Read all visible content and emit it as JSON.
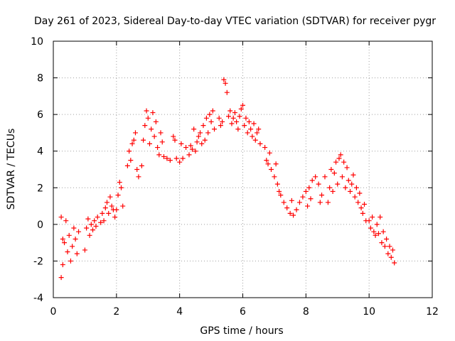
{
  "chart_data": {
    "type": "scatter",
    "title": "Day 261 of 2023, Sidereal Day-to-day VTEC variation (SDTVAR) for receiver pygr",
    "xlabel": "GPS time / hours",
    "ylabel": "SDTVAR / TECUs",
    "xlim": [
      0,
      12
    ],
    "ylim": [
      -4,
      10
    ],
    "xticks": [
      "0",
      "2",
      "4",
      "6",
      "8",
      "10",
      "12"
    ],
    "yticks": [
      "-4",
      "-2",
      "0",
      "2",
      "4",
      "6",
      "8",
      "10"
    ],
    "grid": true,
    "marker": "plus",
    "marker_color": "#ff0000",
    "series": [
      {
        "name": "SDTVAR",
        "points": [
          [
            0.25,
            0.4
          ],
          [
            0.3,
            -0.8
          ],
          [
            0.3,
            -2.2
          ],
          [
            0.35,
            -1.0
          ],
          [
            0.4,
            0.2
          ],
          [
            0.45,
            -1.5
          ],
          [
            0.5,
            -0.6
          ],
          [
            0.55,
            -2.0
          ],
          [
            0.6,
            -1.2
          ],
          [
            0.65,
            -0.2
          ],
          [
            0.7,
            -0.8
          ],
          [
            0.75,
            -1.6
          ],
          [
            0.8,
            -0.4
          ],
          [
            0.25,
            -2.9
          ],
          [
            1.0,
            -1.4
          ],
          [
            1.05,
            -0.2
          ],
          [
            1.1,
            0.3
          ],
          [
            1.15,
            -0.6
          ],
          [
            1.2,
            0.0
          ],
          [
            1.25,
            -0.3
          ],
          [
            1.3,
            0.2
          ],
          [
            1.35,
            -0.1
          ],
          [
            1.4,
            0.4
          ],
          [
            1.5,
            0.1
          ],
          [
            1.55,
            0.6
          ],
          [
            1.6,
            0.2
          ],
          [
            1.65,
            0.9
          ],
          [
            1.7,
            1.2
          ],
          [
            1.75,
            0.6
          ],
          [
            1.8,
            1.5
          ],
          [
            1.85,
            1.0
          ],
          [
            1.9,
            0.8
          ],
          [
            1.95,
            0.4
          ],
          [
            2.0,
            0.8
          ],
          [
            2.05,
            1.6
          ],
          [
            2.1,
            2.3
          ],
          [
            2.15,
            2.0
          ],
          [
            2.2,
            1.0
          ],
          [
            2.35,
            3.2
          ],
          [
            2.4,
            4.0
          ],
          [
            2.45,
            3.5
          ],
          [
            2.5,
            4.4
          ],
          [
            2.55,
            4.6
          ],
          [
            2.6,
            5.0
          ],
          [
            2.65,
            3.0
          ],
          [
            2.7,
            2.6
          ],
          [
            2.8,
            3.2
          ],
          [
            2.85,
            4.6
          ],
          [
            2.9,
            5.4
          ],
          [
            2.95,
            6.2
          ],
          [
            3.0,
            5.8
          ],
          [
            3.05,
            4.4
          ],
          [
            3.1,
            5.2
          ],
          [
            3.15,
            6.1
          ],
          [
            3.2,
            4.8
          ],
          [
            3.25,
            5.6
          ],
          [
            3.3,
            4.2
          ],
          [
            3.35,
            3.8
          ],
          [
            3.4,
            5.0
          ],
          [
            3.45,
            4.5
          ],
          [
            3.5,
            3.7
          ],
          [
            3.6,
            3.6
          ],
          [
            3.7,
            3.5
          ],
          [
            3.8,
            4.8
          ],
          [
            3.85,
            4.6
          ],
          [
            3.9,
            3.6
          ],
          [
            4.0,
            3.4
          ],
          [
            4.05,
            4.4
          ],
          [
            4.1,
            3.6
          ],
          [
            4.2,
            4.2
          ],
          [
            4.3,
            3.8
          ],
          [
            4.35,
            4.3
          ],
          [
            4.4,
            4.1
          ],
          [
            4.45,
            5.2
          ],
          [
            4.5,
            4.0
          ],
          [
            4.55,
            4.5
          ],
          [
            4.6,
            4.8
          ],
          [
            4.65,
            5.0
          ],
          [
            4.7,
            4.4
          ],
          [
            4.75,
            5.4
          ],
          [
            4.8,
            4.6
          ],
          [
            4.85,
            5.8
          ],
          [
            4.9,
            5.0
          ],
          [
            4.95,
            6.0
          ],
          [
            5.0,
            5.6
          ],
          [
            5.05,
            6.2
          ],
          [
            5.1,
            5.2
          ],
          [
            5.25,
            5.8
          ],
          [
            5.3,
            5.4
          ],
          [
            5.35,
            5.6
          ],
          [
            5.4,
            7.9
          ],
          [
            5.45,
            7.7
          ],
          [
            5.5,
            7.2
          ],
          [
            5.55,
            5.9
          ],
          [
            5.6,
            6.2
          ],
          [
            5.65,
            5.5
          ],
          [
            5.7,
            5.8
          ],
          [
            5.75,
            6.1
          ],
          [
            5.8,
            5.6
          ],
          [
            5.85,
            5.2
          ],
          [
            5.9,
            5.9
          ],
          [
            5.95,
            6.3
          ],
          [
            6.0,
            6.5
          ],
          [
            6.05,
            5.4
          ],
          [
            6.1,
            5.8
          ],
          [
            6.15,
            5.0
          ],
          [
            6.2,
            5.6
          ],
          [
            6.25,
            5.2
          ],
          [
            6.3,
            4.8
          ],
          [
            6.35,
            5.5
          ],
          [
            6.4,
            4.6
          ],
          [
            6.45,
            5.0
          ],
          [
            6.5,
            5.2
          ],
          [
            6.55,
            4.4
          ],
          [
            6.7,
            4.2
          ],
          [
            6.75,
            3.5
          ],
          [
            6.8,
            3.3
          ],
          [
            6.85,
            3.9
          ],
          [
            6.9,
            3.0
          ],
          [
            7.0,
            2.6
          ],
          [
            7.05,
            3.3
          ],
          [
            7.1,
            2.2
          ],
          [
            7.15,
            1.8
          ],
          [
            7.2,
            1.6
          ],
          [
            7.3,
            1.2
          ],
          [
            7.4,
            0.9
          ],
          [
            7.5,
            0.6
          ],
          [
            7.55,
            1.3
          ],
          [
            7.6,
            0.5
          ],
          [
            7.7,
            0.8
          ],
          [
            7.8,
            1.2
          ],
          [
            7.9,
            1.5
          ],
          [
            8.0,
            1.8
          ],
          [
            8.05,
            1.0
          ],
          [
            8.1,
            2.0
          ],
          [
            8.15,
            1.4
          ],
          [
            8.2,
            2.4
          ],
          [
            8.3,
            2.6
          ],
          [
            8.4,
            2.2
          ],
          [
            8.45,
            1.2
          ],
          [
            8.5,
            1.6
          ],
          [
            8.6,
            2.6
          ],
          [
            8.7,
            1.2
          ],
          [
            8.75,
            2.0
          ],
          [
            8.8,
            3.0
          ],
          [
            8.85,
            1.8
          ],
          [
            8.9,
            2.8
          ],
          [
            8.95,
            3.4
          ],
          [
            9.0,
            2.2
          ],
          [
            9.05,
            3.6
          ],
          [
            9.1,
            3.8
          ],
          [
            9.15,
            2.6
          ],
          [
            9.2,
            3.4
          ],
          [
            9.25,
            2.0
          ],
          [
            9.3,
            3.1
          ],
          [
            9.35,
            2.4
          ],
          [
            9.4,
            1.8
          ],
          [
            9.45,
            2.2
          ],
          [
            9.5,
            2.7
          ],
          [
            9.55,
            1.5
          ],
          [
            9.6,
            2.0
          ],
          [
            9.65,
            1.2
          ],
          [
            9.7,
            1.7
          ],
          [
            9.75,
            0.9
          ],
          [
            9.8,
            0.6
          ],
          [
            9.85,
            1.1
          ],
          [
            9.9,
            0.2
          ],
          [
            10.0,
            0.2
          ],
          [
            10.05,
            -0.2
          ],
          [
            10.1,
            0.4
          ],
          [
            10.15,
            -0.4
          ],
          [
            10.2,
            -0.6
          ],
          [
            10.25,
            0.0
          ],
          [
            10.3,
            -0.5
          ],
          [
            10.35,
            0.4
          ],
          [
            10.4,
            -1.0
          ],
          [
            10.45,
            -0.4
          ],
          [
            10.5,
            -1.2
          ],
          [
            10.55,
            -0.8
          ],
          [
            10.6,
            -1.6
          ],
          [
            10.65,
            -1.2
          ],
          [
            10.7,
            -1.8
          ],
          [
            10.75,
            -1.4
          ],
          [
            10.8,
            -2.1
          ]
        ]
      }
    ]
  }
}
